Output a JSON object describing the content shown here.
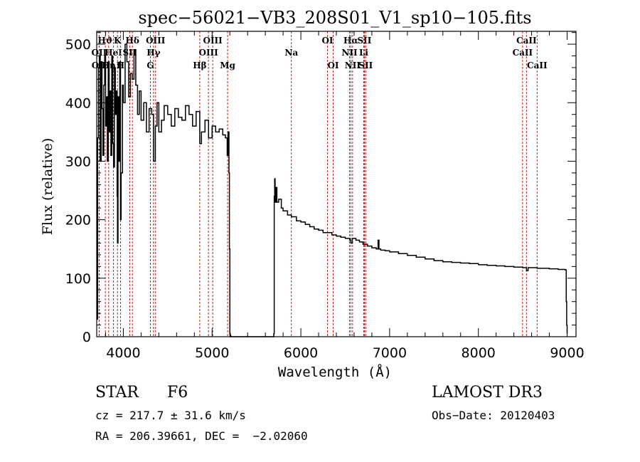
{
  "chart_data": {
    "type": "line",
    "title": "spec−56021−VB3_208S01_V1_sp10−105.fits",
    "xlabel": "Wavelength (Å)",
    "ylabel": "Flux (relative)",
    "xlim": [
      3700,
      9100
    ],
    "ylim": [
      0,
      522
    ],
    "xticks": [
      4000,
      5000,
      6000,
      7000,
      8000,
      9000
    ],
    "xtick_labels": [
      "4000",
      "5000",
      "6000",
      "7000",
      "8000",
      "9000"
    ],
    "yticks": [
      0,
      100,
      200,
      300,
      400,
      500
    ],
    "ytick_labels": [
      "0",
      "100",
      "200",
      "300",
      "400",
      "500"
    ],
    "grid": false,
    "legend": "none",
    "series": [
      {
        "name": "spectrum",
        "color": "#000000",
        "x": [
          3700,
          3710,
          3720,
          3730,
          3740,
          3750,
          3760,
          3770,
          3780,
          3790,
          3800,
          3810,
          3820,
          3830,
          3840,
          3850,
          3860,
          3870,
          3880,
          3890,
          3900,
          3910,
          3920,
          3930,
          3934,
          3940,
          3950,
          3960,
          3968,
          3975,
          3990,
          4000,
          4020,
          4040,
          4060,
          4080,
          4100,
          4120,
          4140,
          4160,
          4180,
          4200,
          4230,
          4260,
          4290,
          4320,
          4340,
          4360,
          4380,
          4400,
          4430,
          4460,
          4500,
          4540,
          4580,
          4620,
          4660,
          4700,
          4740,
          4780,
          4820,
          4861,
          4880,
          4920,
          4960,
          5000,
          5040,
          5080,
          5120,
          5150,
          5170,
          5180,
          5190,
          5195,
          5200,
          5205,
          5210,
          5690,
          5695,
          5700,
          5705,
          5710,
          5720,
          5730,
          5750,
          5780,
          5800,
          5850,
          5893,
          5950,
          6000,
          6050,
          6100,
          6150,
          6200,
          6250,
          6300,
          6350,
          6400,
          6450,
          6500,
          6550,
          6563,
          6580,
          6620,
          6660,
          6700,
          6750,
          6800,
          6850,
          6870,
          6880,
          6900,
          6950,
          7000,
          7100,
          7200,
          7300,
          7400,
          7500,
          7600,
          7700,
          7800,
          7900,
          8000,
          8100,
          8200,
          8300,
          8400,
          8500,
          8542,
          8560,
          8600,
          8662,
          8700,
          8800,
          8900,
          8980,
          8990,
          8995,
          9000
        ],
        "y": [
          30,
          340,
          460,
          480,
          300,
          470,
          390,
          310,
          430,
          480,
          360,
          410,
          300,
          470,
          350,
          420,
          310,
          480,
          330,
          290,
          460,
          380,
          420,
          240,
          160,
          410,
          300,
          470,
          200,
          280,
          430,
          400,
          500,
          470,
          410,
          450,
          440,
          490,
          430,
          380,
          420,
          370,
          400,
          350,
          390,
          380,
          300,
          360,
          400,
          350,
          370,
          395,
          380,
          360,
          390,
          375,
          370,
          395,
          380,
          360,
          385,
          330,
          350,
          370,
          340,
          360,
          350,
          355,
          345,
          340,
          310,
          350,
          280,
          150,
          5,
          2,
          0,
          0,
          5,
          240,
          270,
          230,
          255,
          230,
          235,
          220,
          215,
          208,
          205,
          198,
          196,
          192,
          188,
          184,
          182,
          178,
          178,
          174,
          172,
          170,
          168,
          165,
          160,
          168,
          165,
          162,
          158,
          155,
          152,
          150,
          165,
          150,
          148,
          147,
          145,
          142,
          139,
          136,
          133,
          130,
          128,
          127,
          126,
          125,
          123,
          122,
          121,
          120,
          119,
          118,
          113,
          118,
          118,
          117,
          117,
          116,
          115,
          114,
          60,
          20,
          5
        ]
      }
    ],
    "line_markers": [
      {
        "label": "Hϑ",
        "wavelength": 3797,
        "row": 1
      },
      {
        "label": "K",
        "wavelength": 3934,
        "row": 1
      },
      {
        "label": "Hδ",
        "wavelength": 4102,
        "row": 1
      },
      {
        "label": "OIII",
        "wavelength": 4363,
        "row": 1
      },
      {
        "label": "OIII",
        "wavelength": 5007,
        "row": 1
      },
      {
        "label": "OI",
        "wavelength": 6300,
        "row": 1
      },
      {
        "label": "Hα",
        "wavelength": 6563,
        "row": 1
      },
      {
        "label": "SII",
        "wavelength": 6716,
        "row": 1
      },
      {
        "label": "CaII",
        "wavelength": 8542,
        "row": 1
      },
      {
        "label": "OII",
        "wavelength": 3727,
        "row": 2
      },
      {
        "label": "HeI",
        "wavelength": 3889,
        "row": 2
      },
      {
        "label": "SII",
        "wavelength": 4072,
        "row": 2
      },
      {
        "label": "Hγ",
        "wavelength": 4340,
        "row": 2
      },
      {
        "label": "OIII",
        "wavelength": 4959,
        "row": 2
      },
      {
        "label": "Na",
        "wavelength": 5893,
        "row": 2
      },
      {
        "label": "NII",
        "wavelength": 6548,
        "row": 2
      },
      {
        "label": "Li",
        "wavelength": 6708,
        "row": 2
      },
      {
        "label": "CaII",
        "wavelength": 8498,
        "row": 2
      },
      {
        "label": "OII",
        "wavelength": 3729,
        "row": 3
      },
      {
        "label": "Hη",
        "wavelength": 3835,
        "row": 3
      },
      {
        "label": "H",
        "wavelength": 3968,
        "row": 3
      },
      {
        "label": "G",
        "wavelength": 4305,
        "row": 3
      },
      {
        "label": "Hβ",
        "wavelength": 4861,
        "row": 3
      },
      {
        "label": "Mg",
        "wavelength": 5175,
        "row": 3
      },
      {
        "label": "OI",
        "wavelength": 6364,
        "row": 3
      },
      {
        "label": "NII",
        "wavelength": 6583,
        "row": 3
      },
      {
        "label": "SII",
        "wavelength": 6731,
        "row": 3
      },
      {
        "label": "CaII",
        "wavelength": 8662,
        "row": 3
      }
    ],
    "marker_color": "#b22222"
  },
  "info": {
    "object_class": "STAR",
    "subclass": "F6",
    "redshift_text": "cz = 217.7 ± 31.6 km/s",
    "coords_text": "RA = 206.39661, DEC =  −2.02060",
    "survey": "LAMOST DR3",
    "obs_date_text": "Obs−Date: 20120403"
  }
}
